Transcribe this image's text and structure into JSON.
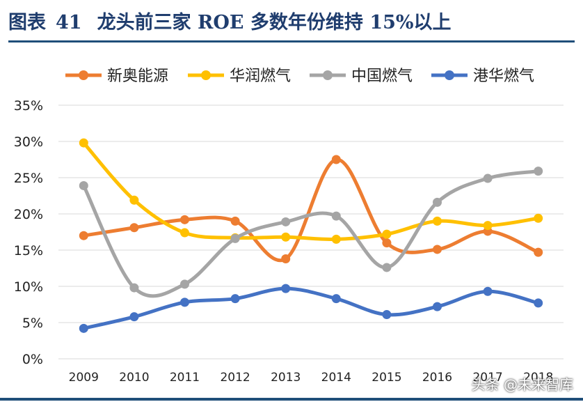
{
  "header": {
    "label": "图表",
    "number": "41",
    "text": "龙头前三家 ROE 多数年份维持 15%以上"
  },
  "watermark": "头条 @未来智库",
  "chart_data": {
    "type": "line",
    "categories": [
      "2009",
      "2010",
      "2011",
      "2012",
      "2013",
      "2014",
      "2015",
      "2016",
      "2017",
      "2018"
    ],
    "ylim": [
      0,
      35
    ],
    "yticks": [
      "0%",
      "5%",
      "10%",
      "15%",
      "20%",
      "25%",
      "30%",
      "35%"
    ],
    "grid": true,
    "legend_position": "top",
    "series": [
      {
        "name": "新奥能源",
        "color": "#ed7d31",
        "values": [
          17.0,
          18.1,
          19.2,
          19.0,
          13.8,
          27.5,
          16.0,
          15.1,
          17.6,
          14.7
        ]
      },
      {
        "name": "华润燃气",
        "color": "#ffc000",
        "values": [
          29.8,
          21.9,
          17.4,
          16.7,
          16.8,
          16.5,
          17.2,
          19.0,
          18.4,
          19.4
        ]
      },
      {
        "name": "中国燃气",
        "color": "#a5a5a5",
        "values": [
          23.9,
          9.8,
          10.3,
          16.6,
          18.9,
          19.7,
          12.6,
          21.6,
          24.9,
          25.9
        ]
      },
      {
        "name": "港华燃气",
        "color": "#4472c4",
        "values": [
          4.2,
          5.8,
          7.8,
          8.3,
          9.7,
          8.3,
          6.1,
          7.2,
          9.3,
          7.7
        ]
      }
    ]
  }
}
